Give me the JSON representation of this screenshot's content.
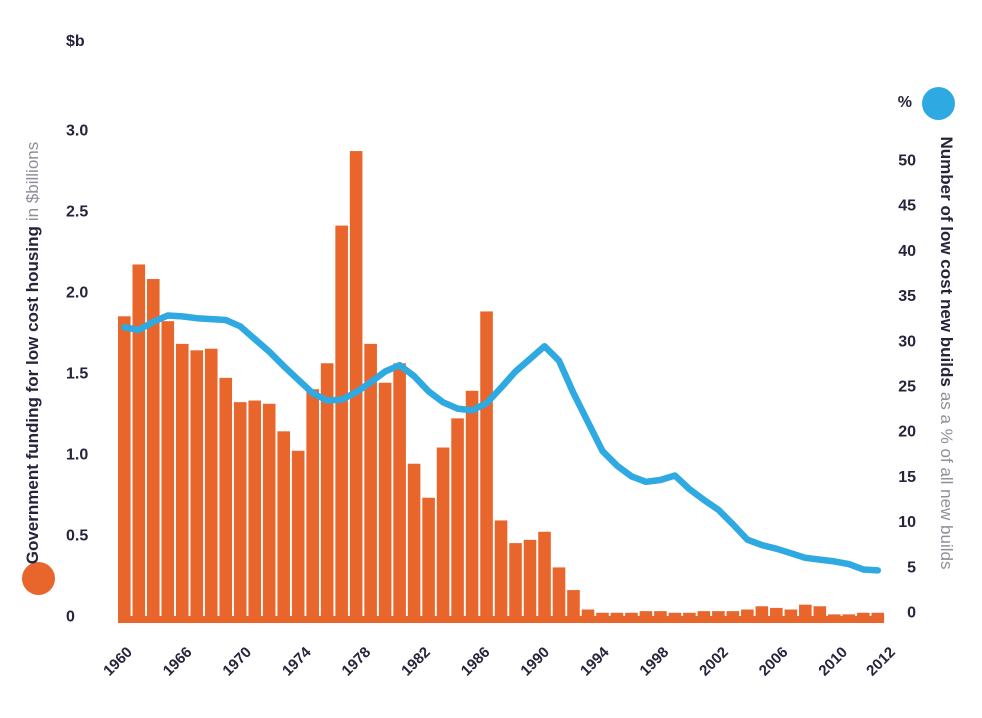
{
  "colors": {
    "bar": "#E8662B",
    "line": "#2FA9E1",
    "text_dark": "#26243A",
    "text_light": "#8F8F9A",
    "background": "#FFFFFF"
  },
  "chart_data": {
    "type": "bar+line",
    "grid": false,
    "x": [
      1960,
      1961,
      1962,
      1963,
      1964,
      1965,
      1966,
      1967,
      1968,
      1969,
      1970,
      1971,
      1972,
      1973,
      1974,
      1975,
      1976,
      1977,
      1978,
      1979,
      1980,
      1981,
      1982,
      1983,
      1984,
      1985,
      1986,
      1987,
      1988,
      1989,
      1990,
      1991,
      1992,
      1993,
      1994,
      1995,
      1996,
      1997,
      1998,
      1999,
      2000,
      2001,
      2002,
      2003,
      2004,
      2005,
      2006,
      2007,
      2008,
      2009,
      2010,
      2011,
      2012
    ],
    "x_tick_labels": [
      "1960",
      "1966",
      "1970",
      "1974",
      "1978",
      "1982",
      "1986",
      "1990",
      "1994",
      "1998",
      "2002",
      "2006",
      "2010",
      "2012"
    ],
    "left_axis": {
      "unit": "$b",
      "label_bold": "Government funding for low cost housing",
      "label_light": "in $billions",
      "ticks": [
        "0",
        "0.5",
        "1.0",
        "1.5",
        "2.0",
        "2.5",
        "3.0"
      ],
      "lim": [
        0,
        3.0
      ]
    },
    "right_axis": {
      "unit": "%",
      "label_bold": "Number of low cost new builds",
      "label_light": "as a % of all new builds",
      "ticks": [
        "0",
        "5",
        "10",
        "15",
        "20",
        "25",
        "30",
        "35",
        "40",
        "45",
        "50"
      ],
      "lim": [
        0,
        50
      ]
    },
    "series": [
      {
        "name": "Government funding for low cost housing",
        "type": "bar",
        "axis": "left",
        "color": "#E8662B",
        "values": [
          1.85,
          2.17,
          2.08,
          1.82,
          1.68,
          1.64,
          1.65,
          1.47,
          1.32,
          1.33,
          1.31,
          1.14,
          1.02,
          1.4,
          1.56,
          2.41,
          2.87,
          1.68,
          1.44,
          1.56,
          0.94,
          0.73,
          1.04,
          1.22,
          1.39,
          1.88,
          0.59,
          0.45,
          0.47,
          0.52,
          0.3,
          0.16,
          0.04,
          0.02,
          0.02,
          0.02,
          0.03,
          0.03,
          0.02,
          0.02,
          0.03,
          0.03,
          0.03,
          0.04,
          0.06,
          0.05,
          0.04,
          0.07,
          0.06,
          0.01,
          0.01,
          0.02,
          0.02
        ]
      },
      {
        "name": "Number of low cost new builds as a % of all new builds",
        "type": "line",
        "axis": "right",
        "color": "#2FA9E1",
        "values": [
          31.5,
          31.2,
          32.1,
          32.8,
          32.7,
          32.5,
          32.4,
          32.3,
          31.6,
          30.2,
          28.8,
          27.2,
          25.7,
          24.2,
          23.4,
          23.5,
          24.3,
          25.4,
          26.6,
          27.3,
          26.1,
          24.4,
          23.2,
          22.5,
          22.3,
          23.1,
          24.8,
          26.6,
          28.0,
          29.4,
          27.8,
          24.2,
          21.0,
          17.8,
          16.2,
          15.0,
          14.4,
          14.6,
          15.1,
          13.6,
          12.4,
          11.3,
          9.7,
          8.0,
          7.4,
          7.0,
          6.5,
          6.0,
          5.8,
          5.6,
          5.3,
          4.7,
          4.6
        ]
      }
    ]
  }
}
